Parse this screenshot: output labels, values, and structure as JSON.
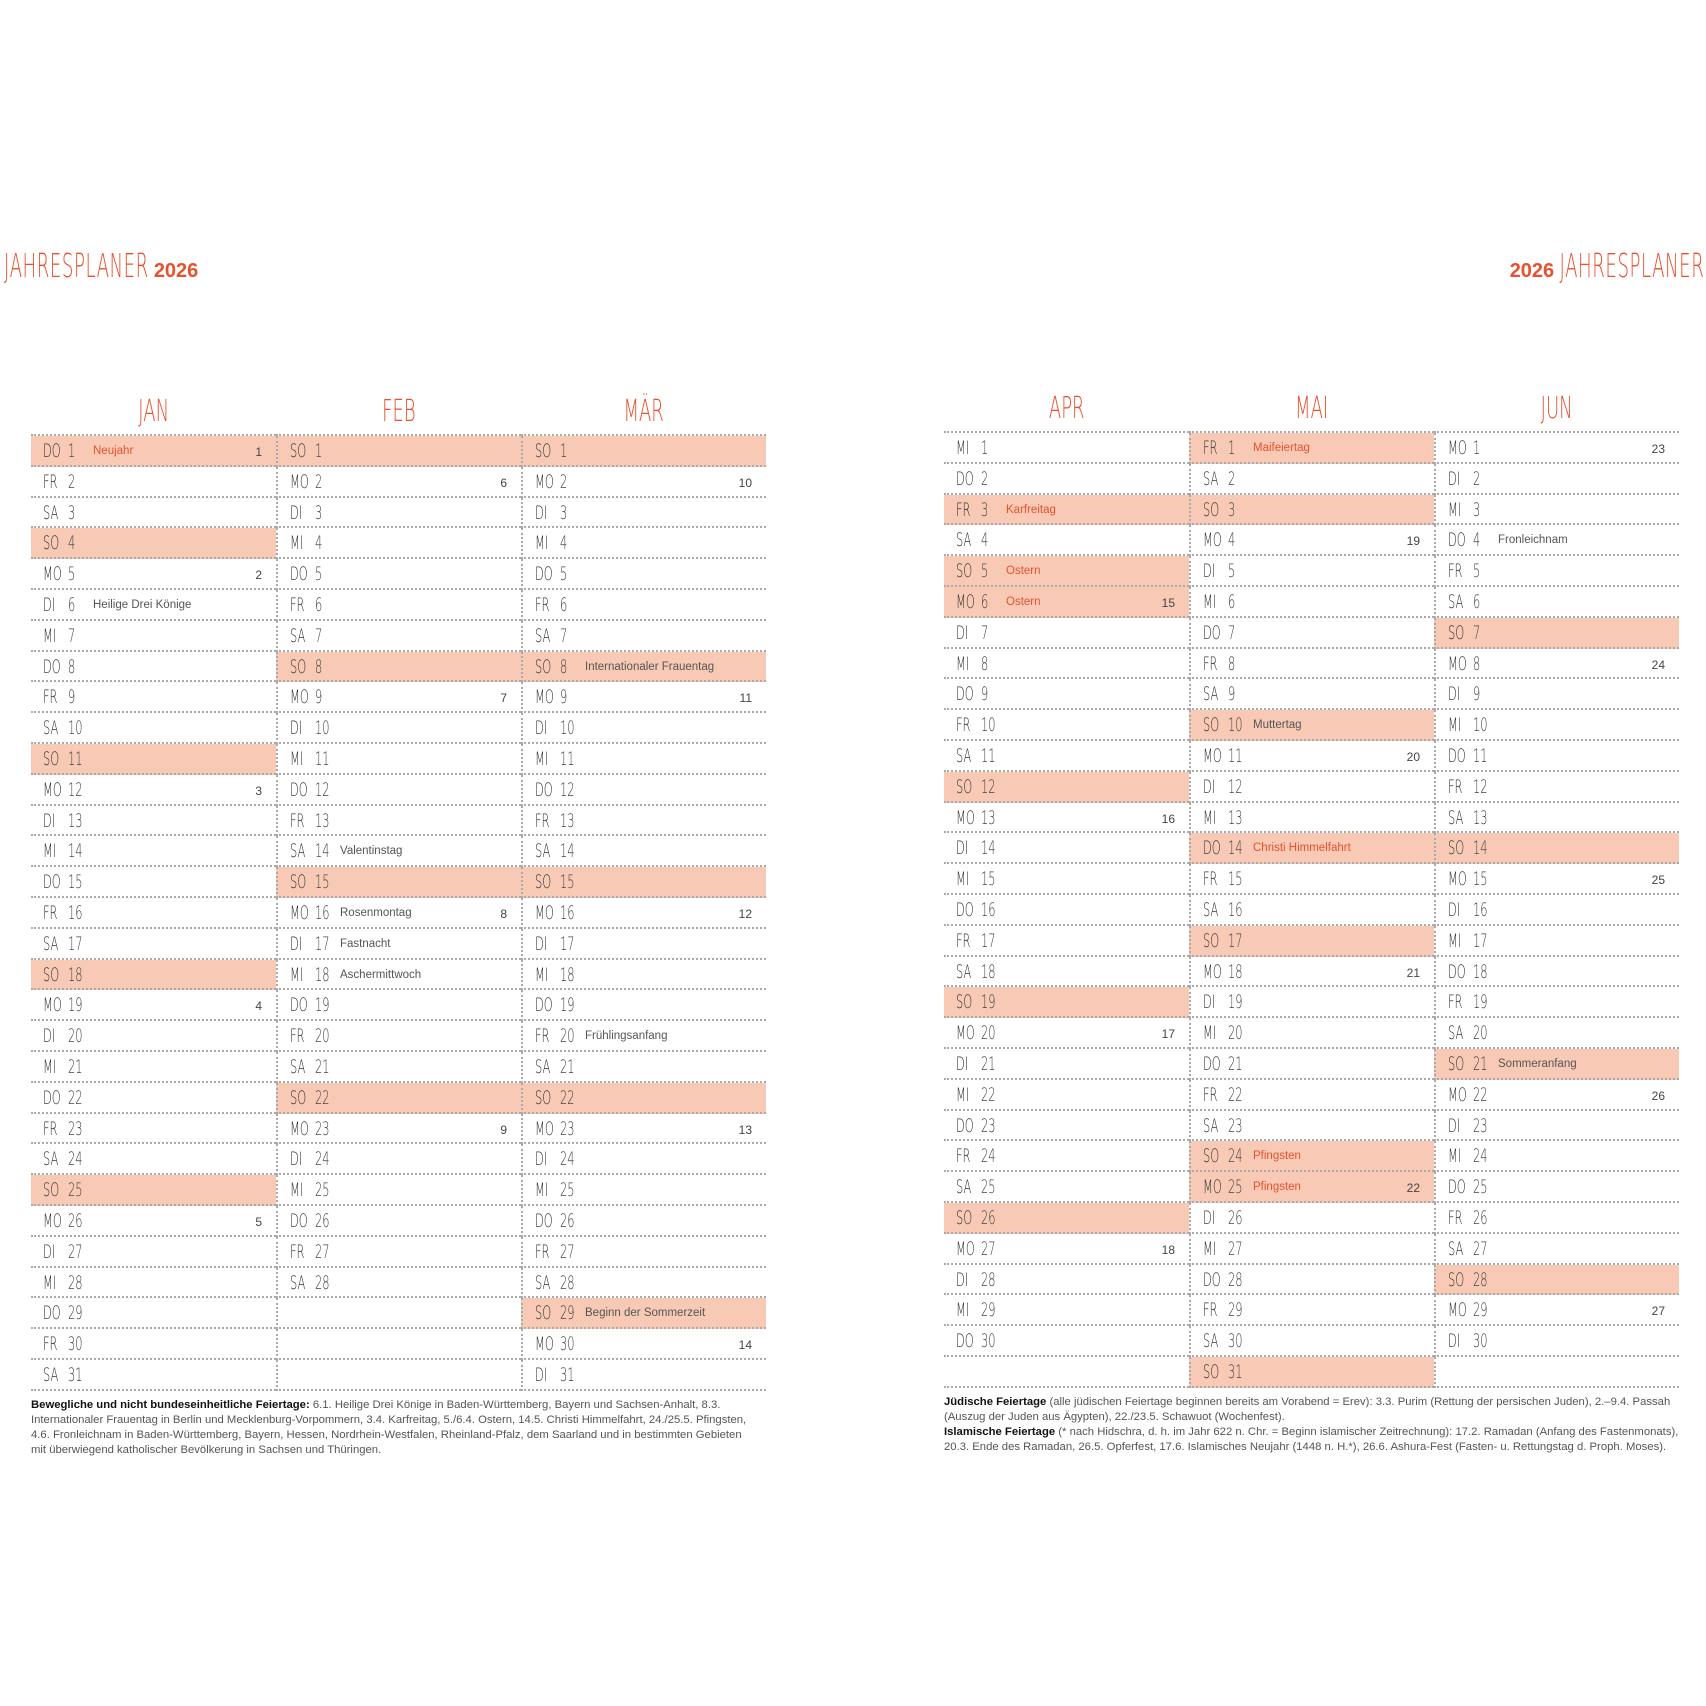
{
  "left_title": {
    "word": "JAHRESPLANER",
    "year": "2026"
  },
  "right_title": {
    "word": "JAHRESPLANER",
    "year": "2026"
  },
  "colors": {
    "accent": "#e8512f",
    "shade": "#f8cab5"
  },
  "months": [
    {
      "name": "JAN",
      "days": [
        {
          "wd": "DO",
          "d": "1",
          "note": "Neujahr",
          "red": true,
          "kw": "1"
        },
        {
          "wd": "FR",
          "d": "2"
        },
        {
          "wd": "SA",
          "d": "3"
        },
        {
          "wd": "SO",
          "d": "4"
        },
        {
          "wd": "MO",
          "d": "5",
          "kw": "2"
        },
        {
          "wd": "DI",
          "d": "6",
          "note": "Heilige Drei Könige"
        },
        {
          "wd": "MI",
          "d": "7"
        },
        {
          "wd": "DO",
          "d": "8"
        },
        {
          "wd": "FR",
          "d": "9"
        },
        {
          "wd": "SA",
          "d": "10"
        },
        {
          "wd": "SO",
          "d": "11"
        },
        {
          "wd": "MO",
          "d": "12",
          "kw": "3"
        },
        {
          "wd": "DI",
          "d": "13"
        },
        {
          "wd": "MI",
          "d": "14"
        },
        {
          "wd": "DO",
          "d": "15"
        },
        {
          "wd": "FR",
          "d": "16"
        },
        {
          "wd": "SA",
          "d": "17"
        },
        {
          "wd": "SO",
          "d": "18"
        },
        {
          "wd": "MO",
          "d": "19",
          "kw": "4"
        },
        {
          "wd": "DI",
          "d": "20"
        },
        {
          "wd": "MI",
          "d": "21"
        },
        {
          "wd": "DO",
          "d": "22"
        },
        {
          "wd": "FR",
          "d": "23"
        },
        {
          "wd": "SA",
          "d": "24"
        },
        {
          "wd": "SO",
          "d": "25"
        },
        {
          "wd": "MO",
          "d": "26",
          "kw": "5"
        },
        {
          "wd": "DI",
          "d": "27"
        },
        {
          "wd": "MI",
          "d": "28"
        },
        {
          "wd": "DO",
          "d": "29"
        },
        {
          "wd": "FR",
          "d": "30"
        },
        {
          "wd": "SA",
          "d": "31"
        }
      ]
    },
    {
      "name": "FEB",
      "days": [
        {
          "wd": "SO",
          "d": "1"
        },
        {
          "wd": "MO",
          "d": "2",
          "kw": "6"
        },
        {
          "wd": "DI",
          "d": "3"
        },
        {
          "wd": "MI",
          "d": "4"
        },
        {
          "wd": "DO",
          "d": "5"
        },
        {
          "wd": "FR",
          "d": "6"
        },
        {
          "wd": "SA",
          "d": "7"
        },
        {
          "wd": "SO",
          "d": "8"
        },
        {
          "wd": "MO",
          "d": "9",
          "kw": "7"
        },
        {
          "wd": "DI",
          "d": "10"
        },
        {
          "wd": "MI",
          "d": "11"
        },
        {
          "wd": "DO",
          "d": "12"
        },
        {
          "wd": "FR",
          "d": "13"
        },
        {
          "wd": "SA",
          "d": "14",
          "note": "Valentinstag"
        },
        {
          "wd": "SO",
          "d": "15"
        },
        {
          "wd": "MO",
          "d": "16",
          "note": "Rosenmontag",
          "kw": "8"
        },
        {
          "wd": "DI",
          "d": "17",
          "note": "Fastnacht"
        },
        {
          "wd": "MI",
          "d": "18",
          "note": "Aschermittwoch"
        },
        {
          "wd": "DO",
          "d": "19"
        },
        {
          "wd": "FR",
          "d": "20"
        },
        {
          "wd": "SA",
          "d": "21"
        },
        {
          "wd": "SO",
          "d": "22"
        },
        {
          "wd": "MO",
          "d": "23",
          "kw": "9"
        },
        {
          "wd": "DI",
          "d": "24"
        },
        {
          "wd": "MI",
          "d": "25"
        },
        {
          "wd": "DO",
          "d": "26"
        },
        {
          "wd": "FR",
          "d": "27"
        },
        {
          "wd": "SA",
          "d": "28"
        }
      ]
    },
    {
      "name": "MÄR",
      "days": [
        {
          "wd": "SO",
          "d": "1"
        },
        {
          "wd": "MO",
          "d": "2",
          "kw": "10"
        },
        {
          "wd": "DI",
          "d": "3"
        },
        {
          "wd": "MI",
          "d": "4"
        },
        {
          "wd": "DO",
          "d": "5"
        },
        {
          "wd": "FR",
          "d": "6"
        },
        {
          "wd": "SA",
          "d": "7"
        },
        {
          "wd": "SO",
          "d": "8",
          "note": "Internationaler Frauentag"
        },
        {
          "wd": "MO",
          "d": "9",
          "kw": "11"
        },
        {
          "wd": "DI",
          "d": "10"
        },
        {
          "wd": "MI",
          "d": "11"
        },
        {
          "wd": "DO",
          "d": "12"
        },
        {
          "wd": "FR",
          "d": "13"
        },
        {
          "wd": "SA",
          "d": "14"
        },
        {
          "wd": "SO",
          "d": "15"
        },
        {
          "wd": "MO",
          "d": "16",
          "kw": "12"
        },
        {
          "wd": "DI",
          "d": "17"
        },
        {
          "wd": "MI",
          "d": "18"
        },
        {
          "wd": "DO",
          "d": "19"
        },
        {
          "wd": "FR",
          "d": "20",
          "note": "Frühlingsanfang"
        },
        {
          "wd": "SA",
          "d": "21"
        },
        {
          "wd": "SO",
          "d": "22"
        },
        {
          "wd": "MO",
          "d": "23",
          "kw": "13"
        },
        {
          "wd": "DI",
          "d": "24"
        },
        {
          "wd": "MI",
          "d": "25"
        },
        {
          "wd": "DO",
          "d": "26"
        },
        {
          "wd": "FR",
          "d": "27"
        },
        {
          "wd": "SA",
          "d": "28"
        },
        {
          "wd": "SO",
          "d": "29",
          "note": "Beginn der Sommerzeit"
        },
        {
          "wd": "MO",
          "d": "30",
          "kw": "14"
        },
        {
          "wd": "DI",
          "d": "31"
        }
      ]
    },
    {
      "name": "APR",
      "days": [
        {
          "wd": "MI",
          "d": "1"
        },
        {
          "wd": "DO",
          "d": "2"
        },
        {
          "wd": "FR",
          "d": "3",
          "note": "Karfreitag",
          "red": true
        },
        {
          "wd": "SA",
          "d": "4"
        },
        {
          "wd": "SO",
          "d": "5",
          "note": "Ostern",
          "red": true
        },
        {
          "wd": "MO",
          "d": "6",
          "note": "Ostern",
          "red": true,
          "kw": "15"
        },
        {
          "wd": "DI",
          "d": "7"
        },
        {
          "wd": "MI",
          "d": "8"
        },
        {
          "wd": "DO",
          "d": "9"
        },
        {
          "wd": "FR",
          "d": "10"
        },
        {
          "wd": "SA",
          "d": "11"
        },
        {
          "wd": "SO",
          "d": "12"
        },
        {
          "wd": "MO",
          "d": "13",
          "kw": "16"
        },
        {
          "wd": "DI",
          "d": "14"
        },
        {
          "wd": "MI",
          "d": "15"
        },
        {
          "wd": "DO",
          "d": "16"
        },
        {
          "wd": "FR",
          "d": "17"
        },
        {
          "wd": "SA",
          "d": "18"
        },
        {
          "wd": "SO",
          "d": "19"
        },
        {
          "wd": "MO",
          "d": "20",
          "kw": "17"
        },
        {
          "wd": "DI",
          "d": "21"
        },
        {
          "wd": "MI",
          "d": "22"
        },
        {
          "wd": "DO",
          "d": "23"
        },
        {
          "wd": "FR",
          "d": "24"
        },
        {
          "wd": "SA",
          "d": "25"
        },
        {
          "wd": "SO",
          "d": "26"
        },
        {
          "wd": "MO",
          "d": "27",
          "kw": "18"
        },
        {
          "wd": "DI",
          "d": "28"
        },
        {
          "wd": "MI",
          "d": "29"
        },
        {
          "wd": "DO",
          "d": "30"
        }
      ]
    },
    {
      "name": "MAI",
      "days": [
        {
          "wd": "FR",
          "d": "1",
          "note": "Maifeiertag",
          "red": true
        },
        {
          "wd": "SA",
          "d": "2"
        },
        {
          "wd": "SO",
          "d": "3"
        },
        {
          "wd": "MO",
          "d": "4",
          "kw": "19"
        },
        {
          "wd": "DI",
          "d": "5"
        },
        {
          "wd": "MI",
          "d": "6"
        },
        {
          "wd": "DO",
          "d": "7"
        },
        {
          "wd": "FR",
          "d": "8"
        },
        {
          "wd": "SA",
          "d": "9"
        },
        {
          "wd": "SO",
          "d": "10",
          "note": "Muttertag"
        },
        {
          "wd": "MO",
          "d": "11",
          "kw": "20"
        },
        {
          "wd": "DI",
          "d": "12"
        },
        {
          "wd": "MI",
          "d": "13"
        },
        {
          "wd": "DO",
          "d": "14",
          "note": "Christi Himmelfahrt",
          "red": true
        },
        {
          "wd": "FR",
          "d": "15"
        },
        {
          "wd": "SA",
          "d": "16"
        },
        {
          "wd": "SO",
          "d": "17"
        },
        {
          "wd": "MO",
          "d": "18",
          "kw": "21"
        },
        {
          "wd": "DI",
          "d": "19"
        },
        {
          "wd": "MI",
          "d": "20"
        },
        {
          "wd": "DO",
          "d": "21"
        },
        {
          "wd": "FR",
          "d": "22"
        },
        {
          "wd": "SA",
          "d": "23"
        },
        {
          "wd": "SO",
          "d": "24",
          "note": "Pfingsten",
          "red": true
        },
        {
          "wd": "MO",
          "d": "25",
          "note": "Pfingsten",
          "red": true,
          "kw": "22"
        },
        {
          "wd": "DI",
          "d": "26"
        },
        {
          "wd": "MI",
          "d": "27"
        },
        {
          "wd": "DO",
          "d": "28"
        },
        {
          "wd": "FR",
          "d": "29"
        },
        {
          "wd": "SA",
          "d": "30"
        },
        {
          "wd": "SO",
          "d": "31"
        }
      ]
    },
    {
      "name": "JUN",
      "days": [
        {
          "wd": "MO",
          "d": "1",
          "kw": "23"
        },
        {
          "wd": "DI",
          "d": "2"
        },
        {
          "wd": "MI",
          "d": "3"
        },
        {
          "wd": "DO",
          "d": "4",
          "note": "Fronleichnam"
        },
        {
          "wd": "FR",
          "d": "5"
        },
        {
          "wd": "SA",
          "d": "6"
        },
        {
          "wd": "SO",
          "d": "7"
        },
        {
          "wd": "MO",
          "d": "8",
          "kw": "24"
        },
        {
          "wd": "DI",
          "d": "9"
        },
        {
          "wd": "MI",
          "d": "10"
        },
        {
          "wd": "DO",
          "d": "11"
        },
        {
          "wd": "FR",
          "d": "12"
        },
        {
          "wd": "SA",
          "d": "13"
        },
        {
          "wd": "SO",
          "d": "14"
        },
        {
          "wd": "MO",
          "d": "15",
          "kw": "25"
        },
        {
          "wd": "DI",
          "d": "16"
        },
        {
          "wd": "MI",
          "d": "17"
        },
        {
          "wd": "DO",
          "d": "18"
        },
        {
          "wd": "FR",
          "d": "19"
        },
        {
          "wd": "SA",
          "d": "20"
        },
        {
          "wd": "SO",
          "d": "21",
          "note": "Sommeranfang"
        },
        {
          "wd": "MO",
          "d": "22",
          "kw": "26"
        },
        {
          "wd": "DI",
          "d": "23"
        },
        {
          "wd": "MI",
          "d": "24"
        },
        {
          "wd": "DO",
          "d": "25"
        },
        {
          "wd": "FR",
          "d": "26"
        },
        {
          "wd": "SA",
          "d": "27"
        },
        {
          "wd": "SO",
          "d": "28"
        },
        {
          "wd": "MO",
          "d": "29",
          "kw": "27"
        },
        {
          "wd": "DI",
          "d": "30"
        }
      ]
    }
  ],
  "footnotes": {
    "left": {
      "bold": "Bewegliche und nicht bundeseinheitliche Feiertage:",
      "text": " 6.1. Heilige Drei Könige in Baden-Württemberg, Bayern und Sachsen-Anhalt, 8.3. Internationaler Frauentag in Berlin und Mecklenburg-Vorpommern, 3.4. Karfreitag, 5./6.4. Ostern, 14.5. Christi Himmelfahrt, 24./25.5. Pfingsten, 4.6. Fronleichnam in Baden-Württemberg, Bayern, Hessen, Nordrhein-Westfalen, Rheinland-Pfalz, dem Saarland und in bestimmten Gebieten mit überwiegend katholischer Bevölkerung in Sachsen und Thüringen."
    },
    "right_jewish": {
      "bold": "Jüdische Feiertage",
      "text": " (alle jüdischen Feiertage beginnen bereits am Vorabend = Erev): 3.3. Purim (Rettung der persischen Juden), 2.–9.4. Passah (Auszug der Juden aus Ägypten), 22./23.5. Schawuot (Wochenfest)."
    },
    "right_islamic": {
      "bold": "Islamische Feiertage",
      "text": " (* nach Hidschra, d. h. im Jahr 622 n. Chr. = Beginn islamischer Zeitrechnung): 17.2. Ramadan (Anfang des Fastenmonats), 20.3. Ende des Ramadan, 26.5. Opferfest, 17.6. Islamisches Neujahr (1448 n. H.*), 26.6. Ashura-Fest (Fasten- u. Rettungstag d. Proph. Moses)."
    }
  }
}
